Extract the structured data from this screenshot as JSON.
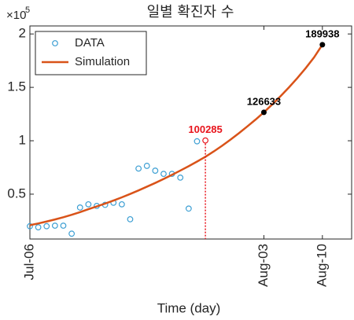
{
  "chart_data": {
    "type": "line",
    "title": "일별 확진자 수",
    "xlabel": "Time (day)",
    "yaxis_multiplier": {
      "base": "×10",
      "exponent": "5"
    },
    "xlim": [
      0,
      38.5
    ],
    "xticks": [
      {
        "value": 0,
        "label": "Jul-06"
      },
      {
        "value": 28,
        "label": "Aug-03"
      },
      {
        "value": 35,
        "label": "Aug-10"
      }
    ],
    "ylim": [
      8000,
      207500
    ],
    "yticks": [
      {
        "value": 50000,
        "label": "0.5"
      },
      {
        "value": 100000,
        "label": "1"
      },
      {
        "value": 150000,
        "label": "1.5"
      },
      {
        "value": 200000,
        "label": "2"
      }
    ],
    "legend": "upper left",
    "series": [
      {
        "name": "DATA",
        "color": "#3d9fd3",
        "marker": "open-circle",
        "x": [
          0,
          1,
          2,
          3,
          4,
          5,
          6,
          7,
          8,
          9,
          10,
          11,
          12,
          13,
          14,
          15,
          16,
          17,
          18,
          19,
          20
        ],
        "values": [
          20000,
          19000,
          20000,
          20500,
          20500,
          13000,
          37500,
          40500,
          39000,
          40000,
          42000,
          40500,
          26500,
          74000,
          76500,
          72000,
          69000,
          69000,
          65500,
          36500,
          99500
        ]
      },
      {
        "name": "Simulation",
        "color": "#d95319",
        "marker": "line",
        "x": [
          0,
          1,
          2,
          3,
          4,
          5,
          6,
          7,
          8,
          9,
          10,
          11,
          12,
          13,
          14,
          15,
          16,
          17,
          18,
          19,
          20,
          21,
          22,
          23,
          24,
          25,
          26,
          27,
          28,
          29,
          30,
          31,
          32,
          33,
          34,
          35
        ],
        "values": [
          21000,
          22600,
          24400,
          26300,
          28400,
          30700,
          33200,
          35900,
          38500,
          41200,
          44000,
          47000,
          50200,
          53500,
          57000,
          60500,
          64200,
          68100,
          72100,
          76200,
          80500,
          85000,
          90000,
          95300,
          101000,
          107000,
          113300,
          119800,
          126633,
          134000,
          141800,
          150000,
          158700,
          168000,
          178000,
          189938
        ]
      }
    ],
    "annotations": [
      {
        "x": 21,
        "y": 100285,
        "color": "#e8141c",
        "marker": "open-circle",
        "dropline": true
      },
      {
        "x": 28,
        "y": 126633,
        "color": "#000000",
        "marker": "dot",
        "dropline": false
      },
      {
        "x": 35,
        "y": 189938,
        "color": "#000000",
        "marker": "dot",
        "dropline": false
      }
    ]
  }
}
